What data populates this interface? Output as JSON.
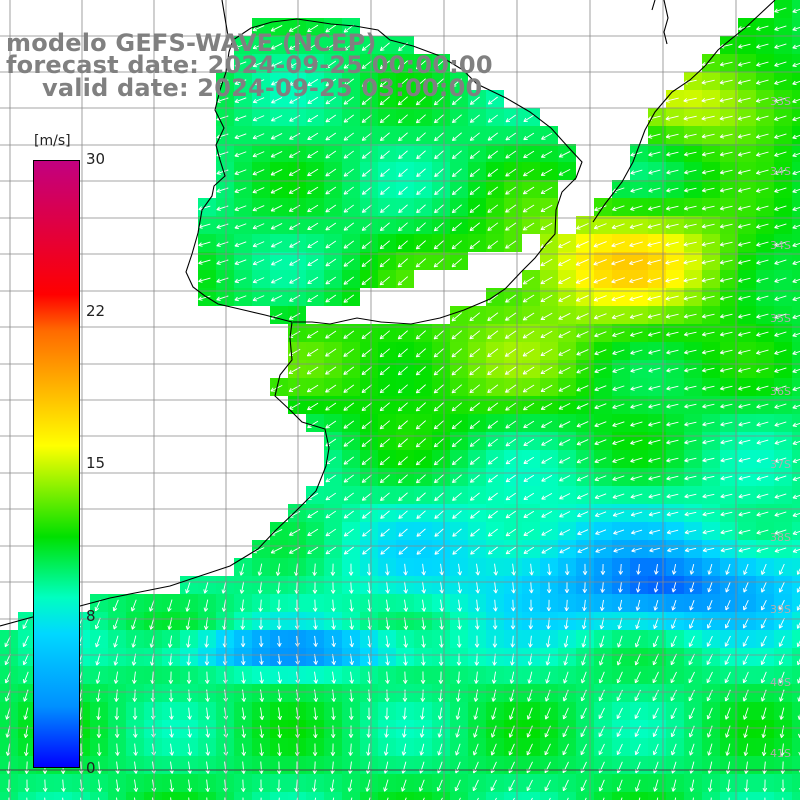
{
  "title": {
    "line1": "modelo GEFS-WAVE (NCEP)",
    "line2": "forecast date: 2024-09-25 00:00:00",
    "line3": "valid date: 2024-09-25 03:00:00"
  },
  "colorbar": {
    "unit": "[m/s]",
    "ticks": [
      "30",
      "22",
      "15",
      "8",
      "0"
    ],
    "colors": [
      "#c20080",
      "#ff0000",
      "#ff6a00",
      "#ffff00",
      "#00e000",
      "#00ffc0",
      "#00d8ff",
      "#0090ff",
      "#0000ff"
    ]
  },
  "map": {
    "land_color": "#ffffff",
    "coast_color": "#000000",
    "grid_color": "#888888",
    "arrow_color": "#ffffff",
    "lat_labels": [
      "33S",
      "34S",
      "35S",
      "36S",
      "37S",
      "38S",
      "39S",
      "40S",
      "41S"
    ]
  }
}
